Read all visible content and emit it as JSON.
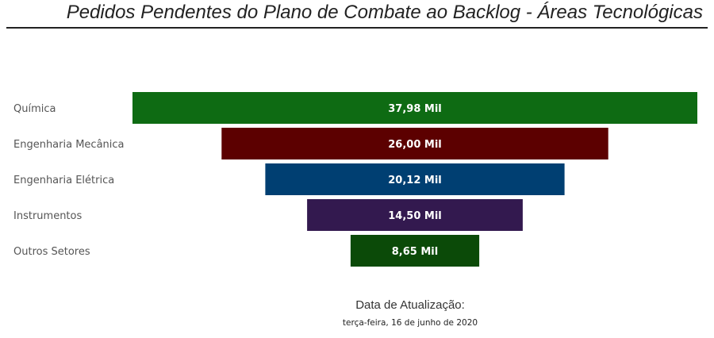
{
  "chart_data": {
    "type": "funnel",
    "title": "Pedidos Pendentes do Plano de Combate ao Backlog - Áreas Tecnológicas",
    "categories": [
      "Química",
      "Engenharia Mecânica",
      "Engenharia Elétrica",
      "Instrumentos",
      "Outros Setores"
    ],
    "values": [
      37.98,
      26.0,
      20.12,
      14.5,
      8.65
    ],
    "value_labels": [
      "37,98 Mil",
      "26,00 Mil",
      "20,12 Mil",
      "14,50 Mil",
      "8,65 Mil"
    ],
    "unit": "Mil",
    "colors": [
      "#0e6b13",
      "#5c0000",
      "#003f72",
      "#33194f",
      "#0b4a08"
    ]
  },
  "footer": {
    "update_label": "Data de Atualização:",
    "update_date": "terça-feira, 16 de junho de 2020"
  }
}
